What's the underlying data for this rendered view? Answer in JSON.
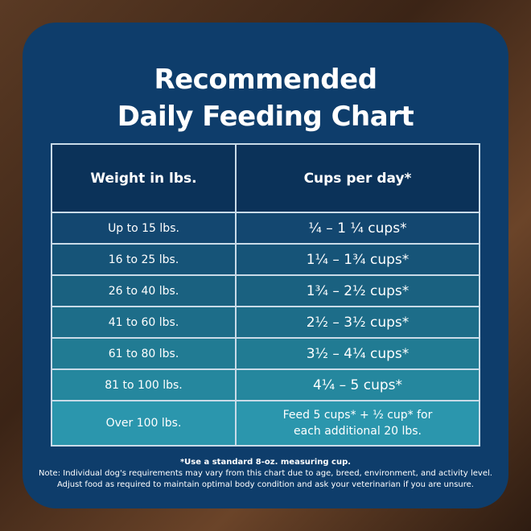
{
  "title": [
    "Recommended",
    "Daily Feeding Chart"
  ],
  "table": {
    "headers": [
      "Weight in lbs.",
      "Cups per day*"
    ],
    "rows": [
      {
        "weight": "Up to 15 lbs.",
        "cups": "¼ – 1 ¼ cups*"
      },
      {
        "weight": "16 to 25 lbs.",
        "cups": "1¼ – 1¾  cups*"
      },
      {
        "weight": "26 to 40 lbs.",
        "cups": "1¾ – 2½ cups*"
      },
      {
        "weight": "41 to 60 lbs.",
        "cups": "2½ – 3½ cups*"
      },
      {
        "weight": "61 to 80 lbs.",
        "cups": "3½ – 4¼ cups*"
      },
      {
        "weight": "81 to 100 lbs.",
        "cups": "4¼ – 5 cups*"
      },
      {
        "weight": "Over 100 lbs.",
        "cups": "Feed 5 cups* + ½ cup* for each additional 20 lbs."
      }
    ],
    "row_colors": [
      "#134770",
      "#165478",
      "#1a6180",
      "#1d6d89",
      "#217b93",
      "#25879e",
      "#2b96ad"
    ]
  },
  "notes": {
    "footnote": "*Use a standard 8-oz. measuring cup.",
    "line1": "Note: Individual dog's requirements may vary from this chart due to age, breed, environment, and activity level.",
    "line2": "Adjust food as required to maintain optimal body condition and ask your veterinarian if you are unsure."
  }
}
